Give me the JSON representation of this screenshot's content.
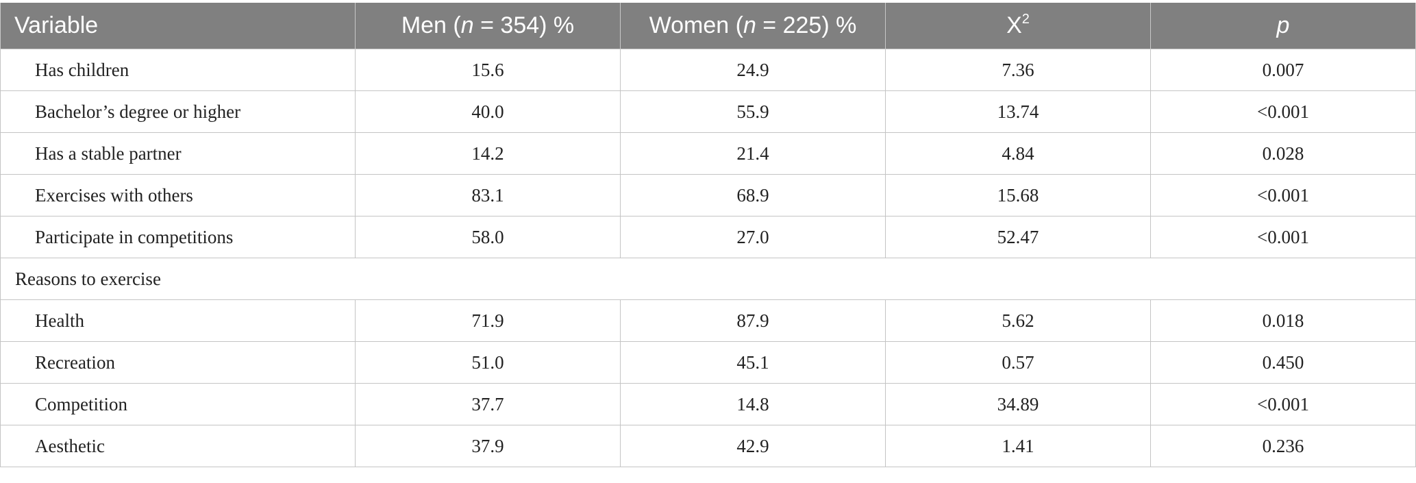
{
  "table": {
    "headers": {
      "variable": "Variable",
      "men_prefix": "Men (",
      "men_n": "n",
      "men_suffix": " = 354) %",
      "women_prefix": "Women (",
      "women_n": "n",
      "women_suffix": " = 225) %",
      "chi_base": "X",
      "chi_sup": "2",
      "p": "p"
    },
    "rows": [
      {
        "label": "Has children",
        "men": "15.6",
        "women": "24.9",
        "chi2": "7.36",
        "p": "0.007"
      },
      {
        "label": "Bachelor’s degree or higher",
        "men": "40.0",
        "women": "55.9",
        "chi2": "13.74",
        "p": "<0.001"
      },
      {
        "label": "Has a stable partner",
        "men": "14.2",
        "women": "21.4",
        "chi2": "4.84",
        "p": "0.028"
      },
      {
        "label": "Exercises with others",
        "men": "83.1",
        "women": "68.9",
        "chi2": "15.68",
        "p": "<0.001"
      },
      {
        "label": "Participate in competitions",
        "men": "58.0",
        "women": "27.0",
        "chi2": "52.47",
        "p": "<0.001"
      }
    ],
    "section": {
      "label": "Reasons to exercise"
    },
    "section_rows": [
      {
        "label": "Health",
        "men": "71.9",
        "women": "87.9",
        "chi2": "5.62",
        "p": "0.018"
      },
      {
        "label": "Recreation",
        "men": "51.0",
        "women": "45.1",
        "chi2": "0.57",
        "p": "0.450"
      },
      {
        "label": "Competition",
        "men": "37.7",
        "women": "14.8",
        "chi2": "34.89",
        "p": "<0.001"
      },
      {
        "label": "Aesthetic",
        "men": "37.9",
        "women": "42.9",
        "chi2": "1.41",
        "p": "0.236"
      }
    ],
    "colors": {
      "header_bg": "#808080",
      "header_text": "#ffffff",
      "border": "#c4c4c4"
    }
  }
}
